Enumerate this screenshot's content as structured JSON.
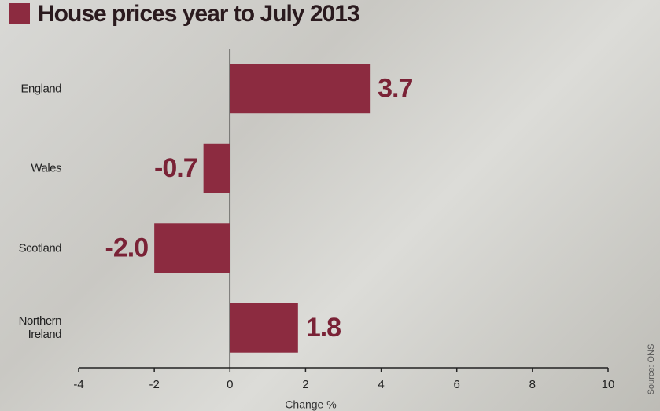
{
  "chart_data": {
    "type": "barh",
    "title": "House prices year to July 2013",
    "categories": [
      "England",
      "Wales",
      "Scotland",
      "Northern Ireland"
    ],
    "values": [
      3.7,
      -0.7,
      -2.0,
      1.8
    ],
    "value_labels": [
      "3.7",
      "-0.7",
      "-2.0",
      "1.8"
    ],
    "color": "#8c2b40",
    "xlim": [
      -4,
      10
    ],
    "xticks": [
      -4,
      -2,
      0,
      2,
      4,
      6,
      8,
      10
    ],
    "xlabel": "Change %",
    "source": "Source: ONS"
  }
}
